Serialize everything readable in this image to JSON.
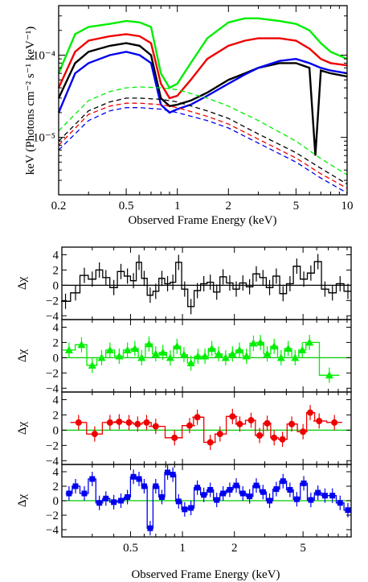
{
  "colors": {
    "black": "#000000",
    "green": "#00ee00",
    "red": "#ee0000",
    "blue": "#0000ee",
    "zero_line": "#00cc00"
  },
  "chart_data": [
    {
      "type": "line",
      "title": "",
      "xlabel": "Observed Frame Energy (keV)",
      "ylabel": "keV (Photons cm⁻² s⁻¹ keV⁻¹)",
      "xscale": "log",
      "yscale": "log",
      "xlim": [
        0.2,
        10
      ],
      "ylim": [
        2e-06,
        0.0004
      ],
      "x_tick_labels": [
        "0.2",
        "0.5",
        "1",
        "2",
        "5",
        "10"
      ],
      "x_ticks": [
        0.2,
        0.5,
        1,
        2,
        5,
        10
      ],
      "y_tick_labels": [
        "10⁻⁴",
        "10⁻⁵"
      ],
      "y_ticks": [
        0.0001,
        1e-05
      ],
      "grid": false,
      "series": [
        {
          "color": "green",
          "style": "solid",
          "x": [
            0.2,
            0.25,
            0.3,
            0.4,
            0.5,
            0.6,
            0.7,
            0.8,
            0.9,
            1.0,
            1.2,
            1.5,
            2.0,
            2.5,
            3.0,
            4.0,
            5.0,
            6.0,
            7.0,
            8.0,
            10.0
          ],
          "y": [
            6e-05,
            0.00018,
            0.00022,
            0.00024,
            0.00026,
            0.00025,
            0.00022,
            6e-05,
            4e-05,
            4.5e-05,
            8e-05,
            0.00016,
            0.00025,
            0.00028,
            0.00028,
            0.00026,
            0.00024,
            0.0002,
            0.00014,
            0.00011,
            9e-05
          ]
        },
        {
          "color": "red",
          "style": "solid",
          "x": [
            0.2,
            0.25,
            0.3,
            0.4,
            0.5,
            0.6,
            0.7,
            0.8,
            0.9,
            1.0,
            1.2,
            1.5,
            2.0,
            2.5,
            3.0,
            4.0,
            5.0,
            6.0,
            7.0,
            8.0,
            10.0
          ],
          "y": [
            4e-05,
            0.00011,
            0.00015,
            0.00017,
            0.00018,
            0.00017,
            0.00014,
            4.5e-05,
            3e-05,
            3.2e-05,
            5e-05,
            9e-05,
            0.00013,
            0.00015,
            0.00016,
            0.00016,
            0.00015,
            0.00012,
            9e-05,
            8e-05,
            7.5e-05
          ]
        },
        {
          "color": "black",
          "style": "solid",
          "x": [
            0.2,
            0.25,
            0.3,
            0.4,
            0.5,
            0.6,
            0.7,
            0.8,
            0.9,
            1.0,
            1.2,
            1.5,
            2.0,
            2.5,
            3.0,
            4.0,
            5.0,
            6.0,
            6.5,
            7.0,
            8.0,
            10.0
          ],
          "y": [
            3e-05,
            8e-05,
            0.00011,
            0.00013,
            0.00014,
            0.00013,
            0.0001,
            3e-05,
            2.4e-05,
            2.5e-05,
            2.8e-05,
            3.5e-05,
            5e-05,
            6e-05,
            7e-05,
            8e-05,
            8e-05,
            7e-05,
            6e-06,
            6.5e-05,
            6e-05,
            5.5e-05
          ]
        },
        {
          "color": "blue",
          "style": "solid",
          "x": [
            0.2,
            0.25,
            0.3,
            0.4,
            0.5,
            0.6,
            0.7,
            0.8,
            0.9,
            1.0,
            1.2,
            1.5,
            2.0,
            2.5,
            3.0,
            4.0,
            5.0,
            6.0,
            7.0,
            8.0,
            10.0
          ],
          "y": [
            2e-05,
            6e-05,
            8e-05,
            0.0001,
            0.00011,
            0.0001,
            8e-05,
            2.5e-05,
            2e-05,
            2.2e-05,
            2.5e-05,
            3.2e-05,
            4.5e-05,
            5.8e-05,
            7e-05,
            8.5e-05,
            9e-05,
            8e-05,
            7e-05,
            6.5e-05,
            6e-05
          ]
        },
        {
          "color": "green",
          "style": "dashed",
          "x": [
            0.2,
            0.3,
            0.4,
            0.5,
            0.6,
            0.8,
            1.0,
            1.5,
            2.0,
            3.0,
            5.0,
            7.0,
            10.0
          ],
          "y": [
            1.2e-05,
            2.8e-05,
            3.6e-05,
            4e-05,
            4.1e-05,
            4e-05,
            3.8e-05,
            3e-05,
            2.4e-05,
            1.6e-05,
            9e-06,
            5.5e-06,
            3.5e-06
          ]
        },
        {
          "color": "black",
          "style": "dashed",
          "x": [
            0.2,
            0.3,
            0.4,
            0.5,
            0.6,
            0.8,
            1.0,
            1.5,
            2.0,
            3.0,
            5.0,
            7.0,
            10.0
          ],
          "y": [
            9e-06,
            2.1e-05,
            2.7e-05,
            3e-05,
            3e-05,
            2.9e-05,
            2.7e-05,
            2.1e-05,
            1.7e-05,
            1.1e-05,
            6.5e-06,
            4.2e-06,
            2.7e-06
          ]
        },
        {
          "color": "red",
          "style": "dashed",
          "x": [
            0.2,
            0.3,
            0.4,
            0.5,
            0.6,
            0.8,
            1.0,
            1.5,
            2.0,
            3.0,
            5.0,
            7.0,
            10.0
          ],
          "y": [
            8e-06,
            1.9e-05,
            2.4e-05,
            2.6e-05,
            2.6e-05,
            2.5e-05,
            2.3e-05,
            1.8e-05,
            1.45e-05,
            9.5e-06,
            5.6e-06,
            3.6e-06,
            2.4e-06
          ]
        },
        {
          "color": "blue",
          "style": "dashed",
          "x": [
            0.2,
            0.3,
            0.4,
            0.5,
            0.6,
            0.8,
            1.0,
            1.5,
            2.0,
            3.0,
            5.0,
            7.0,
            10.0
          ],
          "y": [
            7e-06,
            1.6e-05,
            2.1e-05,
            2.3e-05,
            2.3e-05,
            2.2e-05,
            2e-05,
            1.6e-05,
            1.3e-05,
            8.5e-06,
            5e-06,
            3.2e-06,
            2.1e-06
          ]
        }
      ]
    },
    {
      "type": "scatter",
      "title": "",
      "xlabel": "Observed Frame Energy (keV)",
      "ylabel": "Δχ",
      "xscale": "log",
      "xlim": [
        0.2,
        9.5
      ],
      "x_tick_labels": [
        "0.5",
        "1",
        "2",
        "5"
      ],
      "x_ticks": [
        0.5,
        1,
        2,
        5
      ],
      "panels": [
        {
          "color": "black",
          "marker": "none",
          "ylim": [
            -4.5,
            5
          ],
          "y_tick_labels": [
            "−4",
            "−2",
            "0",
            "2",
            "4"
          ],
          "y_ticks": [
            -4,
            -2,
            0,
            2,
            4
          ],
          "x": [
            0.21,
            0.24,
            0.27,
            0.3,
            0.33,
            0.36,
            0.4,
            0.44,
            0.48,
            0.52,
            0.56,
            0.6,
            0.65,
            0.7,
            0.76,
            0.82,
            0.88,
            0.95,
            1.03,
            1.12,
            1.22,
            1.33,
            1.45,
            1.58,
            1.72,
            1.88,
            2.05,
            2.24,
            2.45,
            2.68,
            2.93,
            3.2,
            3.5,
            3.83,
            4.2,
            4.6,
            5.05,
            5.55,
            6.1,
            6.7,
            7.4,
            8.2,
            9.1
          ],
          "y": [
            -2.1,
            -1.0,
            1.3,
            0.8,
            2.0,
            1.0,
            -0.3,
            1.8,
            1.2,
            0.6,
            3.0,
            0.9,
            -1.3,
            -0.8,
            0.9,
            0.2,
            0.4,
            3.0,
            -0.5,
            -2.8,
            -0.7,
            0.2,
            0.4,
            -0.9,
            1.1,
            0.3,
            -0.5,
            0.3,
            -0.2,
            1.5,
            1.0,
            -0.3,
            1.2,
            -1.1,
            0.2,
            2.5,
            0.8,
            1.6,
            3.1,
            -0.5,
            -1.0,
            0.2,
            -0.8
          ]
        },
        {
          "color": "green",
          "marker": "triangle",
          "ylim": [
            -4.5,
            5
          ],
          "y_tick_labels": [
            "−4",
            "−2",
            "0",
            "2",
            "4"
          ],
          "y_ticks": [
            -4,
            -2,
            0,
            2,
            4
          ],
          "x": [
            0.22,
            0.26,
            0.3,
            0.34,
            0.38,
            0.43,
            0.48,
            0.53,
            0.58,
            0.64,
            0.7,
            0.77,
            0.85,
            0.93,
            1.02,
            1.12,
            1.23,
            1.35,
            1.48,
            1.62,
            1.78,
            1.95,
            2.14,
            2.35,
            2.58,
            2.83,
            3.1,
            3.4,
            3.73,
            4.1,
            4.5,
            4.95,
            5.45,
            7.1
          ],
          "y": [
            1.0,
            1.7,
            -1.0,
            0.0,
            1.0,
            0.2,
            1.0,
            1.2,
            0.0,
            1.8,
            0.5,
            0.7,
            0.0,
            1.5,
            0.4,
            -0.7,
            0.2,
            0.2,
            1.2,
            0.5,
            0.0,
            0.5,
            1.0,
            0.2,
            1.9,
            2.0,
            0.5,
            1.5,
            0.0,
            1.2,
            0.0,
            1.0,
            2.0,
            -2.3
          ]
        },
        {
          "color": "red",
          "marker": "circle",
          "ylim": [
            -4.5,
            5
          ],
          "y_tick_labels": [
            "−4",
            "−2",
            "0",
            "2",
            "4"
          ],
          "y_ticks": [
            -4,
            -2,
            0,
            2,
            4
          ],
          "x": [
            0.25,
            0.31,
            0.38,
            0.43,
            0.49,
            0.55,
            0.62,
            0.7,
            0.9,
            1.1,
            1.22,
            1.45,
            1.65,
            1.95,
            2.15,
            2.5,
            2.8,
            3.1,
            3.4,
            3.8,
            4.3,
            5.0,
            5.5,
            6.2,
            7.6
          ],
          "y": [
            1.0,
            -0.5,
            1.0,
            1.1,
            1.0,
            0.8,
            1.0,
            0.5,
            -1.0,
            0.6,
            1.7,
            -1.6,
            -0.5,
            1.8,
            0.8,
            1.3,
            -0.7,
            0.9,
            -1.0,
            -1.2,
            0.8,
            -0.2,
            2.3,
            1.2,
            1.0
          ]
        },
        {
          "color": "blue",
          "marker": "square",
          "ylim": [
            -5,
            5
          ],
          "y_tick_labels": [
            "−4",
            "−2",
            "0",
            "2",
            "4"
          ],
          "y_ticks": [
            -4,
            -2,
            0,
            2,
            4
          ],
          "x": [
            0.22,
            0.24,
            0.27,
            0.3,
            0.33,
            0.36,
            0.4,
            0.44,
            0.48,
            0.52,
            0.56,
            0.6,
            0.65,
            0.7,
            0.76,
            0.82,
            0.88,
            0.95,
            1.03,
            1.12,
            1.22,
            1.33,
            1.45,
            1.58,
            1.72,
            1.88,
            2.05,
            2.24,
            2.45,
            2.68,
            2.93,
            3.2,
            3.5,
            3.83,
            4.2,
            4.6,
            5.05,
            5.55,
            6.1,
            6.7,
            7.4,
            8.2,
            9.1
          ],
          "y": [
            1.0,
            2.0,
            1.0,
            3.0,
            -0.3,
            0.3,
            -0.2,
            0.0,
            0.5,
            3.3,
            3.0,
            2.0,
            -3.8,
            2.0,
            0.5,
            3.9,
            3.6,
            -0.1,
            -1.2,
            -1.0,
            1.8,
            0.8,
            1.5,
            0.1,
            1.0,
            1.5,
            2.1,
            1.0,
            0.6,
            2.1,
            1.2,
            0.0,
            1.6,
            2.7,
            1.5,
            0.2,
            2.4,
            0.1,
            1.1,
            0.7,
            0.7,
            -0.3,
            -1.3
          ]
        }
      ]
    }
  ]
}
